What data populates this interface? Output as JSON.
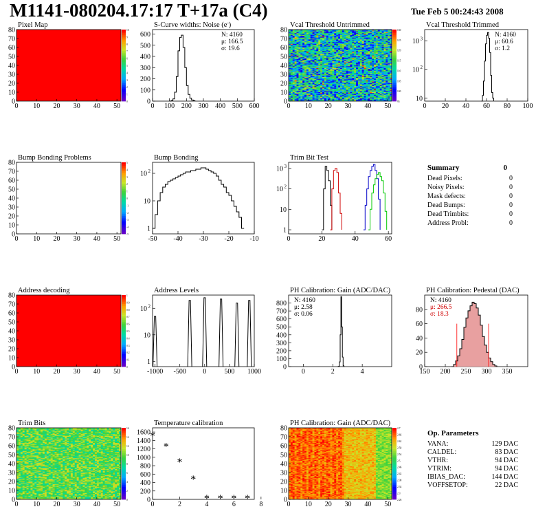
{
  "header": {
    "title": "M1141-080204.17:17 T+17a (C4)",
    "date": "Tue Feb  5 00:24:43 2008"
  },
  "colors": {
    "red": "#ff0000",
    "hist_line": "#000000",
    "trim_red": "#d00000",
    "trim_blue": "#0000c8",
    "trim_green": "#00c800",
    "pedestal_fill": "#e8a0a0"
  },
  "chart_data": [
    {
      "id": "pixel-map",
      "type": "heatmap",
      "title": "Pixel Map",
      "xticks": [
        "0",
        "10",
        "20",
        "30",
        "40",
        "50"
      ],
      "yticks": [
        "0",
        "10",
        "20",
        "30",
        "40",
        "50",
        "60",
        "70",
        "80"
      ],
      "xlim": [
        0,
        52
      ],
      "ylim": [
        0,
        80
      ],
      "fill": "uniform-red",
      "palette_ticks": [
        "10",
        "9",
        "8",
        "7",
        "6",
        "5",
        "4",
        "3",
        "2",
        "1",
        "0"
      ]
    },
    {
      "id": "scurve",
      "type": "line",
      "title": "S-Curve widths: Noise (e",
      "title_sup": "-",
      "title_end": ")",
      "stats": [
        "N: 4160",
        "μ: 166.5",
        "σ: 19.6"
      ],
      "xticks": [
        "0",
        "100",
        "200",
        "300",
        "400",
        "500",
        "600"
      ],
      "yticks": [
        "0",
        "100",
        "200",
        "300",
        "400",
        "500",
        "600"
      ],
      "xlim": [
        0,
        600
      ],
      "ylim": [
        0,
        640
      ],
      "x": [
        100,
        110,
        120,
        130,
        140,
        150,
        160,
        170,
        180,
        190,
        200,
        210,
        220,
        230,
        240,
        250
      ],
      "values": [
        0,
        5,
        20,
        80,
        220,
        450,
        570,
        590,
        480,
        300,
        140,
        60,
        25,
        10,
        4,
        0
      ]
    },
    {
      "id": "vcal-untrimmed",
      "type": "heatmap",
      "title": "Vcal Threshold Untrimmed",
      "xticks": [
        "0",
        "10",
        "20",
        "30",
        "40",
        "50"
      ],
      "yticks": [
        "0",
        "10",
        "20",
        "30",
        "40",
        "50",
        "60",
        "70",
        "80"
      ],
      "xlim": [
        0,
        52
      ],
      "ylim": [
        0,
        80
      ],
      "fill": "noise-green",
      "palette_ticks": [
        "130",
        "125",
        "120",
        "115",
        "110",
        "105",
        "100",
        "95"
      ]
    },
    {
      "id": "vcal-trimmed",
      "type": "line",
      "title": "Vcal Threshold Trimmed",
      "stats": [
        "N: 4160",
        "μ: 60.6",
        "σ:  1.2"
      ],
      "xticks": [
        "0",
        "20",
        "40",
        "60",
        "80",
        "100"
      ],
      "yticks": [
        "10",
        "10",
        "10"
      ],
      "ytick_exp": [
        "",
        "2",
        "3"
      ],
      "xlim": [
        0,
        100
      ],
      "log_y": true,
      "ylim_log": [
        0.9,
        3.4
      ],
      "x": [
        55,
        56,
        57,
        58,
        59,
        60,
        61,
        62,
        63,
        64,
        65,
        66,
        67
      ],
      "values": [
        0,
        1.1,
        1.6,
        2.3,
        2.9,
        3.2,
        3.3,
        3.1,
        2.6,
        1.8,
        1.2,
        1.0,
        0
      ]
    },
    {
      "id": "bump-problems",
      "type": "heatmap",
      "title": "Bump Bonding Problems",
      "xticks": [
        "0",
        "10",
        "20",
        "30",
        "40",
        "50"
      ],
      "yticks": [
        "0",
        "10",
        "20",
        "30",
        "40",
        "50",
        "60",
        "70",
        "80"
      ],
      "xlim": [
        0,
        52
      ],
      "ylim": [
        0,
        80
      ],
      "fill": "empty",
      "palette_ticks": [
        "5",
        "4",
        "3",
        "2",
        "1",
        "0",
        "-1",
        "-2",
        "-3",
        "-4",
        "-5"
      ]
    },
    {
      "id": "bump-bonding",
      "type": "line",
      "title": "Bump Bonding",
      "xticks": [
        "-50",
        "-40",
        "-30",
        "-20",
        "-10"
      ],
      "yticks": [
        "1",
        "10",
        "10"
      ],
      "ytick_exp": [
        "",
        "",
        "2"
      ],
      "xlim": [
        -50,
        -10
      ],
      "log_y": true,
      "ylim_log": [
        -0.2,
        2.4
      ],
      "x": [
        -50,
        -49,
        -48,
        -47,
        -46,
        -45,
        -44,
        -43,
        -42,
        -41,
        -40,
        -39,
        -38,
        -37,
        -36,
        -35,
        -34,
        -33,
        -32,
        -31,
        -30,
        -29,
        -28,
        -27,
        -26,
        -25,
        -24,
        -23,
        -22,
        -21,
        -20,
        -19,
        -18,
        -17,
        -16,
        -15,
        -14
      ],
      "values": [
        0,
        0.5,
        1.0,
        1.3,
        1.5,
        1.6,
        1.7,
        1.75,
        1.8,
        1.85,
        1.9,
        1.95,
        2.0,
        2.05,
        2.05,
        2.1,
        2.1,
        2.15,
        2.15,
        2.2,
        2.2,
        2.15,
        2.1,
        2.05,
        2.0,
        1.9,
        1.75,
        1.6,
        1.5,
        1.3,
        1.2,
        1.0,
        0.8,
        0.6,
        0.4,
        0.0,
        0
      ]
    },
    {
      "id": "trim-bit-test",
      "type": "line",
      "title": "Trim Bit Test",
      "xticks": [
        "0",
        "20",
        "40",
        "60"
      ],
      "yticks": [
        "1",
        "10",
        "10",
        "10"
      ],
      "ytick_exp": [
        "",
        "",
        "2",
        "3"
      ],
      "xlim": [
        0,
        62
      ],
      "log_y": true,
      "ylim_log": [
        -0.2,
        3.3
      ],
      "series": [
        {
          "color": "#000000",
          "x": [
            20,
            21,
            22,
            23,
            24,
            25,
            26
          ],
          "values": [
            0,
            2.0,
            3.1,
            2.9,
            2.4,
            1.2,
            0
          ]
        },
        {
          "color": "#d00000",
          "x": [
            25,
            26,
            27,
            28,
            29,
            30,
            31,
            32
          ],
          "values": [
            0,
            2.0,
            2.9,
            3.0,
            2.8,
            1.8,
            0.8,
            0
          ]
        },
        {
          "color": "#0000c8",
          "x": [
            45,
            46,
            47,
            48,
            49,
            50,
            51,
            52,
            53,
            54,
            55
          ],
          "values": [
            0,
            1.2,
            2.0,
            2.6,
            2.9,
            3.1,
            3.2,
            2.9,
            2.5,
            1.5,
            0
          ]
        },
        {
          "color": "#00c800",
          "x": [
            48,
            49,
            50,
            51,
            52,
            53,
            54,
            55,
            56,
            57,
            58,
            59
          ],
          "values": [
            0,
            1.0,
            1.8,
            2.2,
            2.5,
            2.7,
            2.8,
            2.6,
            2.4,
            1.8,
            0.9,
            0
          ]
        }
      ]
    },
    {
      "id": "address-decoding",
      "type": "heatmap",
      "title": "Address decoding",
      "xticks": [
        "0",
        "10",
        "20",
        "30",
        "40",
        "50"
      ],
      "yticks": [
        "0",
        "10",
        "20",
        "30",
        "40",
        "50",
        "60",
        "70",
        "80"
      ],
      "xlim": [
        0,
        52
      ],
      "ylim": [
        0,
        80
      ],
      "fill": "uniform-red",
      "palette_ticks": [
        "1",
        "0.9",
        "0.8",
        "0.7",
        "0.6",
        "0.5",
        "0.4",
        "0.3",
        "0.2",
        "0.1",
        "0"
      ]
    },
    {
      "id": "address-levels",
      "type": "line",
      "title": "Address Levels",
      "xticks": [
        "-1000",
        "-500",
        "0",
        "500",
        "1000"
      ],
      "yticks": [
        "1",
        "10",
        "10"
      ],
      "ytick_exp": [
        "",
        "",
        "2"
      ],
      "xlim": [
        -1050,
        1000
      ],
      "log_y": true,
      "ylim_log": [
        -0.2,
        2.5
      ],
      "peaks": [
        {
          "x": -1000,
          "h": 1.7
        },
        {
          "x": -300,
          "h": 2.3
        },
        {
          "x": 0,
          "h": 2.4
        },
        {
          "x": 330,
          "h": 2.35
        },
        {
          "x": 650,
          "h": 2.2
        },
        {
          "x": 900,
          "h": 2.3
        }
      ]
    },
    {
      "id": "ph-gain",
      "type": "line",
      "title": "PH Calibration: Gain (ADC/DAC)",
      "stats": [
        "N: 4160",
        "μ: 2.58",
        "σ: 0.06"
      ],
      "xticks": [
        "0",
        "2",
        "4"
      ],
      "yticks": [
        "0",
        "100",
        "200",
        "300",
        "400",
        "500",
        "600",
        "700",
        "800"
      ],
      "xlim": [
        -1,
        6
      ],
      "ylim": [
        0,
        900
      ],
      "x": [
        2.3,
        2.4,
        2.45,
        2.5,
        2.55,
        2.6,
        2.65,
        2.7,
        2.75,
        2.8
      ],
      "values": [
        0,
        5,
        60,
        400,
        880,
        500,
        120,
        10,
        0,
        0
      ]
    },
    {
      "id": "ph-pedestal",
      "type": "line",
      "title": "PH Calibration: Pedestal (DAC)",
      "stats": [
        "N: 4160"
      ],
      "stats_red": [
        "μ: 266.5",
        "σ: 18.3"
      ],
      "xticks": [
        "150",
        "200",
        "250",
        "300",
        "350"
      ],
      "yticks": [
        "0",
        "20",
        "40",
        "60",
        "80"
      ],
      "xlim": [
        150,
        400
      ],
      "ylim": [
        0,
        100
      ],
      "x": [
        215,
        220,
        225,
        230,
        235,
        240,
        245,
        250,
        255,
        260,
        265,
        270,
        275,
        280,
        285,
        290,
        295,
        300,
        305,
        310,
        315,
        320,
        325
      ],
      "values": [
        0,
        3,
        8,
        15,
        25,
        38,
        55,
        68,
        78,
        85,
        90,
        88,
        82,
        72,
        58,
        42,
        30,
        20,
        12,
        7,
        3,
        1,
        0
      ],
      "fit_marks": [
        228,
        305
      ]
    },
    {
      "id": "trim-bits",
      "type": "heatmap",
      "title": "Trim Bits",
      "xticks": [
        "0",
        "10",
        "20",
        "30",
        "40",
        "50"
      ],
      "yticks": [
        "0",
        "10",
        "20",
        "30",
        "40",
        "50",
        "60",
        "70",
        "80"
      ],
      "xlim": [
        0,
        52
      ],
      "ylim": [
        0,
        80
      ],
      "fill": "noise-yellow",
      "palette_ticks": [
        "16",
        "14",
        "12",
        "10",
        "8",
        "6",
        "4",
        "2",
        "0"
      ]
    },
    {
      "id": "temperature",
      "type": "scatter",
      "title": "Temperature calibration",
      "xticks": [
        "0",
        "2",
        "4",
        "6",
        "8"
      ],
      "yticks": [
        "0",
        "200",
        "400",
        "600",
        "800",
        "1000",
        "1200",
        "1400",
        "1600"
      ],
      "xlim": [
        0,
        7.5
      ],
      "ylim": [
        0,
        1700
      ],
      "x": [
        0,
        1,
        2,
        3,
        4,
        5,
        6,
        7
      ],
      "values": [
        1500,
        1250,
        880,
        470,
        20,
        20,
        20,
        20
      ]
    },
    {
      "id": "ph-gain-map",
      "type": "heatmap",
      "title": "PH Calibration: Gain (ADC/DAC)",
      "xticks": [
        "0",
        "10",
        "20",
        "30",
        "40",
        "50"
      ],
      "yticks": [
        "0",
        "10",
        "20",
        "30",
        "40",
        "50",
        "60",
        "70",
        "80"
      ],
      "xlim": [
        0,
        52
      ],
      "ylim": [
        0,
        80
      ],
      "fill": "columns-redyellow",
      "palette_ticks": [
        "2.7",
        "2.66",
        "2.62",
        "2.58",
        "2.54",
        "2.5",
        "2.46",
        "2.42",
        "2.38",
        "2.34",
        "2.3",
        "2.26"
      ]
    }
  ],
  "summary": {
    "title": "Summary",
    "total": "0",
    "rows": [
      {
        "label": "Dead Pixels:",
        "value": "0"
      },
      {
        "label": "Noisy Pixels:",
        "value": "0"
      },
      {
        "label": "Mask defects:",
        "value": "0"
      },
      {
        "label": "Dead Bumps:",
        "value": "0"
      },
      {
        "label": "Dead Trimbits:",
        "value": "0"
      },
      {
        "label": "Address Probl:",
        "value": "0"
      }
    ]
  },
  "op_params": {
    "title": "Op. Parameters",
    "rows": [
      {
        "label": "VANA:",
        "value": "129 DAC"
      },
      {
        "label": "CALDEL:",
        "value": "83 DAC"
      },
      {
        "label": "VTHR:",
        "value": "94 DAC"
      },
      {
        "label": "VTRIM:",
        "value": "94 DAC"
      },
      {
        "label": "IBIAS_DAC:",
        "value": "144 DAC"
      },
      {
        "label": "VOFFSETOP:",
        "value": "22 DAC"
      }
    ]
  }
}
